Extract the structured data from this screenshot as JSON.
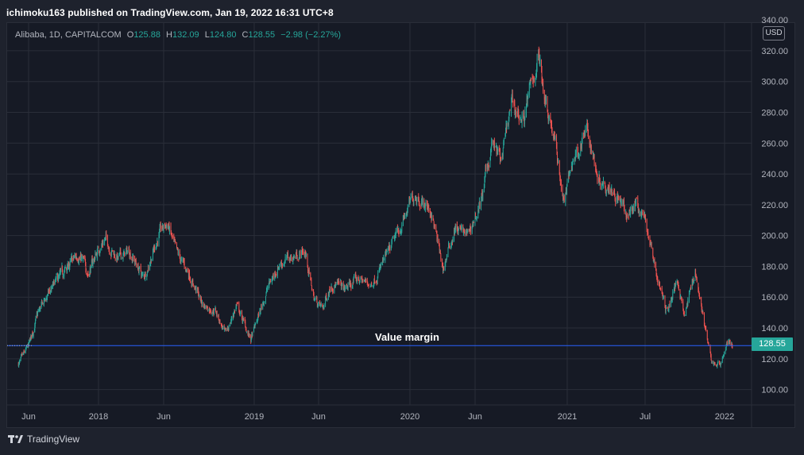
{
  "caption": "ichimoku163 published on TradingView.com, Jan 19, 2022 16:31 UTC+8",
  "legend": {
    "symbol": "Alibaba, 1D, CAPITALCOM",
    "o_label": "O",
    "o_value": "125.88",
    "h_label": "H",
    "h_value": "132.09",
    "l_label": "L",
    "l_value": "124.80",
    "c_label": "C",
    "c_value": "128.55",
    "change": "−2.98 (−2.27%)"
  },
  "currency": "USD",
  "current_price": "128.55",
  "footer_brand": "TradingView",
  "colors": {
    "up": "#26a69a",
    "down": "#ef5350",
    "line": "#2962ff",
    "grid": "#2a2e39"
  },
  "chart_data": {
    "type": "candlestick",
    "title": "Alibaba, 1D, CAPITALCOM",
    "yaxis": {
      "min": 90,
      "max": 338,
      "ticks": [
        100,
        120,
        140,
        160,
        180,
        200,
        220,
        240,
        260,
        280,
        300,
        320,
        340
      ]
    },
    "xaxis_ticks": [
      {
        "label": "Jun",
        "date": "2017-06-01"
      },
      {
        "label": "2018",
        "date": "2018-01-01"
      },
      {
        "label": "Jun",
        "date": "2018-06-01"
      },
      {
        "label": "2019",
        "date": "2019-01-01"
      },
      {
        "label": "Jun",
        "date": "2019-06-01"
      },
      {
        "label": "2020",
        "date": "2020-01-01"
      },
      {
        "label": "Jun",
        "date": "2020-06-01"
      },
      {
        "label": "2021",
        "date": "2021-01-01"
      },
      {
        "label": "Jul",
        "date": "2021-07-01"
      },
      {
        "label": "2022",
        "date": "2022-01-01"
      }
    ],
    "date_range": [
      "2017-05-01",
      "2022-01-19"
    ],
    "horizontal_line": {
      "value": 128.55,
      "label": "Value margin"
    },
    "price_path": [
      {
        "date": "2017-05-05",
        "price": 117
      },
      {
        "date": "2017-06-01",
        "price": 128
      },
      {
        "date": "2017-07-01",
        "price": 150
      },
      {
        "date": "2017-08-01",
        "price": 162
      },
      {
        "date": "2017-09-01",
        "price": 172
      },
      {
        "date": "2017-10-01",
        "price": 180
      },
      {
        "date": "2017-11-01",
        "price": 188
      },
      {
        "date": "2017-12-01",
        "price": 176
      },
      {
        "date": "2018-01-15",
        "price": 198
      },
      {
        "date": "2018-02-15",
        "price": 185
      },
      {
        "date": "2018-03-15",
        "price": 190
      },
      {
        "date": "2018-04-15",
        "price": 172
      },
      {
        "date": "2018-05-20",
        "price": 200
      },
      {
        "date": "2018-06-10",
        "price": 208
      },
      {
        "date": "2018-07-01",
        "price": 188
      },
      {
        "date": "2018-08-01",
        "price": 175
      },
      {
        "date": "2018-09-01",
        "price": 155
      },
      {
        "date": "2018-10-01",
        "price": 152
      },
      {
        "date": "2018-10-25",
        "price": 135
      },
      {
        "date": "2018-11-20",
        "price": 155
      },
      {
        "date": "2018-12-24",
        "price": 132
      },
      {
        "date": "2019-01-31",
        "price": 165
      },
      {
        "date": "2019-03-01",
        "price": 182
      },
      {
        "date": "2019-04-30",
        "price": 190
      },
      {
        "date": "2019-05-20",
        "price": 160
      },
      {
        "date": "2019-06-10",
        "price": 152
      },
      {
        "date": "2019-07-01",
        "price": 170
      },
      {
        "date": "2019-08-01",
        "price": 165
      },
      {
        "date": "2019-09-01",
        "price": 172
      },
      {
        "date": "2019-10-01",
        "price": 168
      },
      {
        "date": "2019-11-15",
        "price": 190
      },
      {
        "date": "2020-01-14",
        "price": 228
      },
      {
        "date": "2020-02-20",
        "price": 215
      },
      {
        "date": "2020-03-18",
        "price": 178
      },
      {
        "date": "2020-04-15",
        "price": 205
      },
      {
        "date": "2020-05-15",
        "price": 200
      },
      {
        "date": "2020-06-15",
        "price": 222
      },
      {
        "date": "2020-07-10",
        "price": 260
      },
      {
        "date": "2020-08-01",
        "price": 248
      },
      {
        "date": "2020-08-25",
        "price": 285
      },
      {
        "date": "2020-09-20",
        "price": 275
      },
      {
        "date": "2020-10-27",
        "price": 317
      },
      {
        "date": "2020-11-10",
        "price": 292
      },
      {
        "date": "2020-12-01",
        "price": 265
      },
      {
        "date": "2020-12-24",
        "price": 222
      },
      {
        "date": "2021-01-15",
        "price": 250
      },
      {
        "date": "2021-02-16",
        "price": 268
      },
      {
        "date": "2021-03-15",
        "price": 238
      },
      {
        "date": "2021-04-15",
        "price": 232
      },
      {
        "date": "2021-05-20",
        "price": 212
      },
      {
        "date": "2021-06-10",
        "price": 222
      },
      {
        "date": "2021-07-01",
        "price": 210
      },
      {
        "date": "2021-08-01",
        "price": 170
      },
      {
        "date": "2021-08-20",
        "price": 150
      },
      {
        "date": "2021-09-15",
        "price": 172
      },
      {
        "date": "2021-10-01",
        "price": 148
      },
      {
        "date": "2021-10-25",
        "price": 178
      },
      {
        "date": "2021-11-20",
        "price": 135
      },
      {
        "date": "2021-12-01",
        "price": 118
      },
      {
        "date": "2021-12-20",
        "price": 116
      },
      {
        "date": "2022-01-10",
        "price": 132
      },
      {
        "date": "2022-01-19",
        "price": 128.55
      }
    ]
  }
}
